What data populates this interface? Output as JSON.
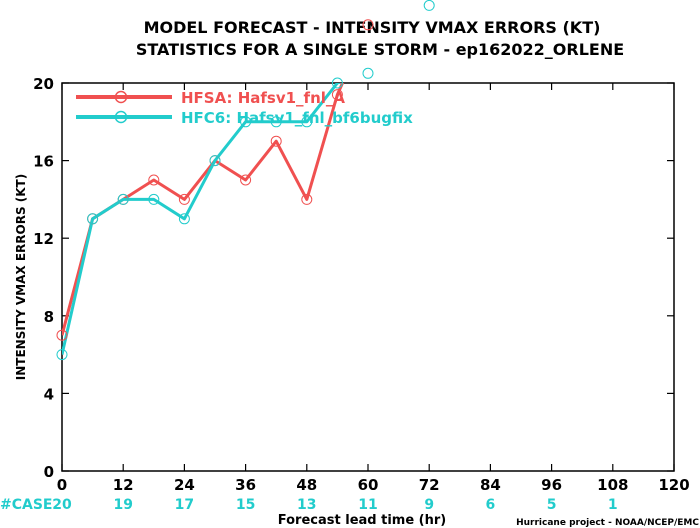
{
  "chart_data": {
    "type": "line",
    "title": "MODEL FORECAST - INTENSITY VMAX ERRORS (KT)",
    "subtitle": "STATISTICS FOR A SINGLE STORM - ep162022_ORLENE",
    "xlabel": "Forecast lead time (hr)",
    "ylabel": "INTENSITY VMAX ERRORS (KT)",
    "xlim": [
      0,
      120
    ],
    "ylim": [
      0,
      20
    ],
    "xticks": [
      0,
      12,
      24,
      36,
      48,
      60,
      72,
      84,
      96,
      108,
      120
    ],
    "yticks": [
      0,
      4,
      8,
      12,
      16,
      20
    ],
    "grid": false,
    "legend_position": "top-left",
    "series": [
      {
        "name": "HFSA: Hafsv1_fnl_A",
        "color": "#f05050",
        "x": [
          0,
          6,
          12,
          18,
          24,
          30,
          36,
          42,
          48,
          54,
          60
        ],
        "y": [
          7,
          13,
          14,
          15,
          14,
          16,
          15,
          17,
          14,
          19.4,
          23
        ]
      },
      {
        "name": "HFC6: Hafsv1_fnl_bf6bugfix",
        "color": "#22cccc",
        "x": [
          0,
          6,
          12,
          18,
          24,
          30,
          36,
          42,
          48,
          54,
          60,
          72
        ],
        "y": [
          6,
          13,
          14,
          14,
          13,
          16,
          18,
          18,
          18,
          20,
          20.5,
          24
        ]
      }
    ],
    "case_label": "#CASE",
    "case_counts": [
      {
        "x": 0,
        "n": "20"
      },
      {
        "x": 12,
        "n": "19"
      },
      {
        "x": 24,
        "n": "17"
      },
      {
        "x": 36,
        "n": "15"
      },
      {
        "x": 48,
        "n": "13"
      },
      {
        "x": 60,
        "n": "11"
      },
      {
        "x": 72,
        "n": "9"
      },
      {
        "x": 84,
        "n": "6"
      },
      {
        "x": 96,
        "n": "5"
      },
      {
        "x": 108,
        "n": "1"
      }
    ],
    "credit": "Hurricane project - NOAA/NCEP/EMC"
  }
}
